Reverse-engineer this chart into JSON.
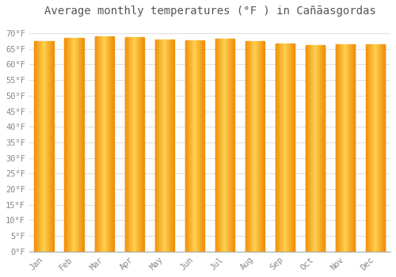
{
  "title": "Average monthly temperatures (°F ) in Cañāasgordas",
  "months": [
    "Jan",
    "Feb",
    "Mar",
    "Apr",
    "May",
    "Jun",
    "Jul",
    "Aug",
    "Sep",
    "Oct",
    "Nov",
    "Dec"
  ],
  "values": [
    67.5,
    68.5,
    69.0,
    68.7,
    68.0,
    67.8,
    68.2,
    67.4,
    66.7,
    66.3,
    66.5,
    66.4
  ],
  "ylim": [
    0,
    74
  ],
  "yticks": [
    0,
    5,
    10,
    15,
    20,
    25,
    30,
    35,
    40,
    45,
    50,
    55,
    60,
    65,
    70
  ],
  "bar_color_center": "#FFD050",
  "bar_color_edge": "#F0900A",
  "background_color": "#FFFFFF",
  "plot_bg_color": "#FFFFFF",
  "grid_color": "#E0E0E0",
  "title_fontsize": 10,
  "tick_fontsize": 7.5,
  "title_color": "#555555",
  "tick_color": "#888888"
}
